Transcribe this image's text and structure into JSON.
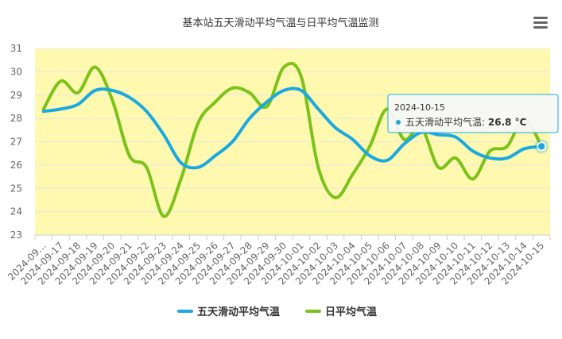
{
  "chart_data": {
    "type": "line",
    "title": "基本站五天滑动平均气温与日平均气温监测",
    "categories": [
      "2024-09…",
      "2024-09-17",
      "2024-09-18",
      "2024-09-19",
      "2024-09-20",
      "2024-09-21",
      "2024-09-22",
      "2024-09-23",
      "2024-09-24",
      "2024-09-25",
      "2024-09-26",
      "2024-09-27",
      "2024-09-28",
      "2024-09-29",
      "2024-09-30",
      "2024-10-01",
      "2024-10-02",
      "2024-10-03",
      "2024-10-04",
      "2024-10-05",
      "2024-10-06",
      "2024-10-07",
      "2024-10-08",
      "2024-10-09",
      "2024-10-10",
      "2024-10-11",
      "2024-10-12",
      "2024-10-13",
      "2024-10-14",
      "2024-10-15"
    ],
    "yticks": [
      "23",
      "24",
      "25",
      "26",
      "27",
      "28",
      "29",
      "30",
      "31"
    ],
    "ylim": [
      23,
      31
    ],
    "series": [
      {
        "name": "五天滑动平均气温",
        "color": "#1aa9e0",
        "values": [
          28.3,
          28.4,
          28.6,
          29.2,
          29.2,
          28.9,
          28.3,
          27.3,
          26.1,
          25.9,
          26.4,
          27.0,
          28.0,
          28.7,
          29.2,
          29.2,
          28.4,
          27.6,
          27.1,
          26.4,
          26.2,
          26.9,
          27.4,
          27.3,
          27.2,
          26.6,
          26.3,
          26.3,
          26.7,
          26.8
        ]
      },
      {
        "name": "日平均气温",
        "color": "#7cc21a",
        "values": [
          28.4,
          29.6,
          29.1,
          30.2,
          28.8,
          26.4,
          25.9,
          23.8,
          25.4,
          27.8,
          28.7,
          29.3,
          29.1,
          28.5,
          30.2,
          29.8,
          25.9,
          24.6,
          25.6,
          26.8,
          28.4,
          27.1,
          27.6,
          25.9,
          26.3,
          25.4,
          26.6,
          26.8,
          28.0,
          26.8
        ]
      }
    ],
    "tooltip": {
      "date": "2024-10-15",
      "series": "五天滑动平均气温",
      "value": "26.8 °C",
      "index": 29
    },
    "colors": {
      "plot_bg": "#fff9b0",
      "grid": "#e6e6e6"
    },
    "grid": true,
    "legend_position": "bottom"
  },
  "menu_icon": "hamburger-icon"
}
